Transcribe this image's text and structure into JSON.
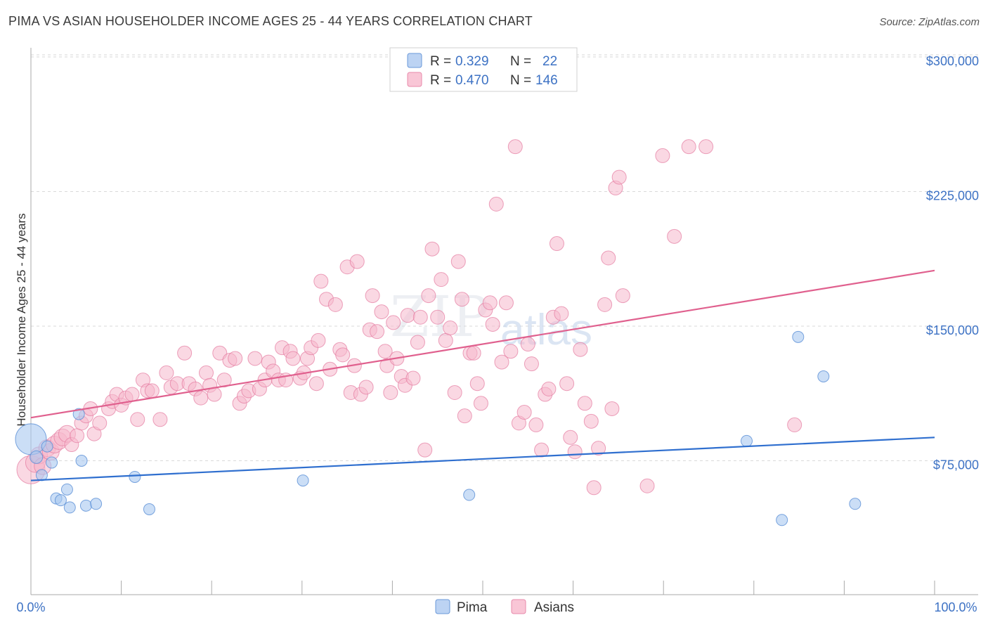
{
  "header": {
    "title": "PIMA VS ASIAN HOUSEHOLDER INCOME AGES 25 - 44 YEARS CORRELATION CHART",
    "source": "Source: ZipAtlas.com"
  },
  "watermark": {
    "zip": "ZIP",
    "atlas": "atlas"
  },
  "legend_top": {
    "rows": [
      {
        "r_label": "R =",
        "r_value": "0.329",
        "n_label": "N =",
        "n_value": "22"
      },
      {
        "r_label": "R =",
        "r_value": "0.470",
        "n_label": "N =",
        "n_value": "146"
      }
    ]
  },
  "legend_bottom": {
    "items": [
      "Pima",
      "Asians"
    ]
  },
  "colors": {
    "pima_fill": "#a9c8f0",
    "pima_stroke": "#5a8fd6",
    "pima_line": "#2f6fcf",
    "asian_fill": "#f6b8cc",
    "asian_stroke": "#e47aa0",
    "asian_line": "#e0608e",
    "axis_text": "#3d72c4",
    "grid": "#d9d9d9"
  },
  "chart_data": {
    "type": "scatter",
    "title": "PIMA VS ASIAN HOUSEHOLDER INCOME AGES 25 - 44 YEARS CORRELATION CHART",
    "xlabel": "",
    "ylabel": "Householder Income Ages 25 - 44 years",
    "xlim": [
      0,
      100
    ],
    "ylim": [
      10000,
      310000
    ],
    "x_tick_labels": [
      "0.0%",
      "100.0%"
    ],
    "y_ticks": [
      75000,
      150000,
      225000,
      300000
    ],
    "y_tick_labels": [
      "$75,000",
      "$150,000",
      "$225,000",
      "$300,000"
    ],
    "grid": true,
    "legend_position": "top-center",
    "series": [
      {
        "name": "Pima",
        "r": 0.329,
        "n": 22,
        "trend": {
          "x": [
            0,
            100
          ],
          "y": [
            64000,
            88000
          ]
        },
        "points": [
          [
            0,
            87000,
            22
          ],
          [
            0.6,
            77000,
            9
          ],
          [
            1.2,
            67000,
            8
          ],
          [
            1.8,
            83000,
            8
          ],
          [
            2.3,
            74000,
            8
          ],
          [
            2.8,
            54000,
            8
          ],
          [
            3.3,
            53000,
            8
          ],
          [
            4.0,
            59000,
            8
          ],
          [
            4.3,
            49000,
            8
          ],
          [
            5.3,
            101000,
            8
          ],
          [
            5.6,
            75000,
            8
          ],
          [
            6.1,
            50000,
            8
          ],
          [
            7.2,
            51000,
            8
          ],
          [
            11.5,
            66000,
            8
          ],
          [
            13.1,
            48000,
            8
          ],
          [
            30.1,
            64000,
            8
          ],
          [
            48.5,
            56000,
            8
          ],
          [
            79.2,
            86000,
            8
          ],
          [
            83.1,
            42000,
            8
          ],
          [
            84.9,
            144000,
            8
          ],
          [
            87.7,
            122000,
            8
          ],
          [
            91.2,
            51000,
            8
          ]
        ]
      },
      {
        "name": "Asians",
        "r": 0.47,
        "n": 146,
        "trend": {
          "x": [
            0,
            100
          ],
          "y": [
            99000,
            181000
          ]
        },
        "points": [
          [
            0,
            70000,
            20
          ],
          [
            0.5,
            74000,
            14
          ],
          [
            0.9,
            78000,
            12
          ],
          [
            1.3,
            72000,
            12
          ],
          [
            1.8,
            82000,
            12
          ],
          [
            2.2,
            80000,
            12
          ],
          [
            2.6,
            84000,
            12
          ],
          [
            3.1,
            86000,
            12
          ],
          [
            3.5,
            88000,
            12
          ],
          [
            4.0,
            90000,
            12
          ],
          [
            4.5,
            84000,
            10
          ],
          [
            5.1,
            89000,
            10
          ],
          [
            5.6,
            96000,
            10
          ],
          [
            6.1,
            100000,
            10
          ],
          [
            6.6,
            104000,
            10
          ],
          [
            7.0,
            90000,
            10
          ],
          [
            7.6,
            96000,
            10
          ],
          [
            8.6,
            104000,
            10
          ],
          [
            9.0,
            108000,
            10
          ],
          [
            9.5,
            112000,
            10
          ],
          [
            10.0,
            106000,
            10
          ],
          [
            10.5,
            110000,
            10
          ],
          [
            11.2,
            112000,
            10
          ],
          [
            11.8,
            98000,
            10
          ],
          [
            12.4,
            120000,
            10
          ],
          [
            12.9,
            114000,
            10
          ],
          [
            13.4,
            114000,
            10
          ],
          [
            14.3,
            98000,
            10
          ],
          [
            15.0,
            124000,
            10
          ],
          [
            15.5,
            116000,
            10
          ],
          [
            16.2,
            118000,
            10
          ],
          [
            17.0,
            135000,
            10
          ],
          [
            17.5,
            118000,
            10
          ],
          [
            18.2,
            115000,
            10
          ],
          [
            18.8,
            110000,
            10
          ],
          [
            19.4,
            124000,
            10
          ],
          [
            19.8,
            117000,
            10
          ],
          [
            20.3,
            112000,
            10
          ],
          [
            20.9,
            135000,
            10
          ],
          [
            21.4,
            120000,
            10
          ],
          [
            22.0,
            131000,
            10
          ],
          [
            22.6,
            132000,
            10
          ],
          [
            23.1,
            107000,
            10
          ],
          [
            23.6,
            111000,
            10
          ],
          [
            24.1,
            114000,
            10
          ],
          [
            24.8,
            132000,
            10
          ],
          [
            25.3,
            115000,
            10
          ],
          [
            25.9,
            120000,
            10
          ],
          [
            26.3,
            130000,
            10
          ],
          [
            26.8,
            125000,
            10
          ],
          [
            27.4,
            120000,
            10
          ],
          [
            27.8,
            138000,
            10
          ],
          [
            28.2,
            120000,
            10
          ],
          [
            28.7,
            136000,
            10
          ],
          [
            29.0,
            132000,
            10
          ],
          [
            29.8,
            121000,
            10
          ],
          [
            30.2,
            124000,
            10
          ],
          [
            30.6,
            132000,
            10
          ],
          [
            31.0,
            138000,
            10
          ],
          [
            31.6,
            118000,
            10
          ],
          [
            31.8,
            142000,
            10
          ],
          [
            32.1,
            175000,
            10
          ],
          [
            32.7,
            165000,
            10
          ],
          [
            33.1,
            126000,
            10
          ],
          [
            33.7,
            162000,
            10
          ],
          [
            34.2,
            137000,
            10
          ],
          [
            34.5,
            134000,
            10
          ],
          [
            35.0,
            183000,
            10
          ],
          [
            35.4,
            113000,
            10
          ],
          [
            35.8,
            128000,
            10
          ],
          [
            36.1,
            186000,
            10
          ],
          [
            36.5,
            112000,
            10
          ],
          [
            37.1,
            116000,
            10
          ],
          [
            37.5,
            148000,
            10
          ],
          [
            37.8,
            167000,
            10
          ],
          [
            38.3,
            147000,
            10
          ],
          [
            38.8,
            158000,
            10
          ],
          [
            39.2,
            136000,
            10
          ],
          [
            39.4,
            128000,
            10
          ],
          [
            39.8,
            113000,
            10
          ],
          [
            40.1,
            152000,
            10
          ],
          [
            40.5,
            132000,
            10
          ],
          [
            41.0,
            122000,
            10
          ],
          [
            41.4,
            117000,
            10
          ],
          [
            41.7,
            156000,
            10
          ],
          [
            42.3,
            121000,
            10
          ],
          [
            42.8,
            141000,
            10
          ],
          [
            43.1,
            155000,
            10
          ],
          [
            43.6,
            81000,
            10
          ],
          [
            44.0,
            167000,
            10
          ],
          [
            44.4,
            193000,
            10
          ],
          [
            45.0,
            155000,
            10
          ],
          [
            45.4,
            176000,
            10
          ],
          [
            45.9,
            142000,
            10
          ],
          [
            46.4,
            149000,
            10
          ],
          [
            46.9,
            113000,
            10
          ],
          [
            47.3,
            186000,
            10
          ],
          [
            47.7,
            165000,
            10
          ],
          [
            48.0,
            100000,
            10
          ],
          [
            48.6,
            135000,
            10
          ],
          [
            49.0,
            135000,
            10
          ],
          [
            49.4,
            118000,
            10
          ],
          [
            49.8,
            107000,
            10
          ],
          [
            50.3,
            159000,
            10
          ],
          [
            50.8,
            163000,
            10
          ],
          [
            51.1,
            151000,
            10
          ],
          [
            51.5,
            218000,
            10
          ],
          [
            52.1,
            130000,
            10
          ],
          [
            52.6,
            163000,
            10
          ],
          [
            53.1,
            136000,
            10
          ],
          [
            53.6,
            250000,
            10
          ],
          [
            54.0,
            96000,
            10
          ],
          [
            54.6,
            102000,
            10
          ],
          [
            55.0,
            140000,
            10
          ],
          [
            55.4,
            129000,
            10
          ],
          [
            55.9,
            95000,
            10
          ],
          [
            56.5,
            81000,
            10
          ],
          [
            56.9,
            112000,
            10
          ],
          [
            57.3,
            115000,
            10
          ],
          [
            57.8,
            155000,
            10
          ],
          [
            58.2,
            196000,
            10
          ],
          [
            58.7,
            157000,
            10
          ],
          [
            59.3,
            118000,
            10
          ],
          [
            59.7,
            88000,
            10
          ],
          [
            60.2,
            80000,
            10
          ],
          [
            60.8,
            137000,
            10
          ],
          [
            61.3,
            107000,
            10
          ],
          [
            62.0,
            97000,
            10
          ],
          [
            62.3,
            60000,
            10
          ],
          [
            62.8,
            82000,
            10
          ],
          [
            63.5,
            162000,
            10
          ],
          [
            63.9,
            188000,
            10
          ],
          [
            64.3,
            104000,
            10
          ],
          [
            64.7,
            227000,
            10
          ],
          [
            65.1,
            233000,
            10
          ],
          [
            65.5,
            167000,
            10
          ],
          [
            68.2,
            61000,
            10
          ],
          [
            69.9,
            245000,
            10
          ],
          [
            71.2,
            200000,
            10
          ],
          [
            72.8,
            250000,
            10
          ],
          [
            74.7,
            250000,
            10
          ],
          [
            84.5,
            95000,
            10
          ],
          [
            42.5,
            80000,
            0
          ],
          [
            46.0,
            80000,
            0
          ],
          [
            58.4,
            80000,
            0
          ],
          [
            60.5,
            80000,
            0
          ]
        ]
      }
    ]
  },
  "axes": {
    "x_left_label": "0.0%",
    "x_right_label": "100.0%"
  }
}
